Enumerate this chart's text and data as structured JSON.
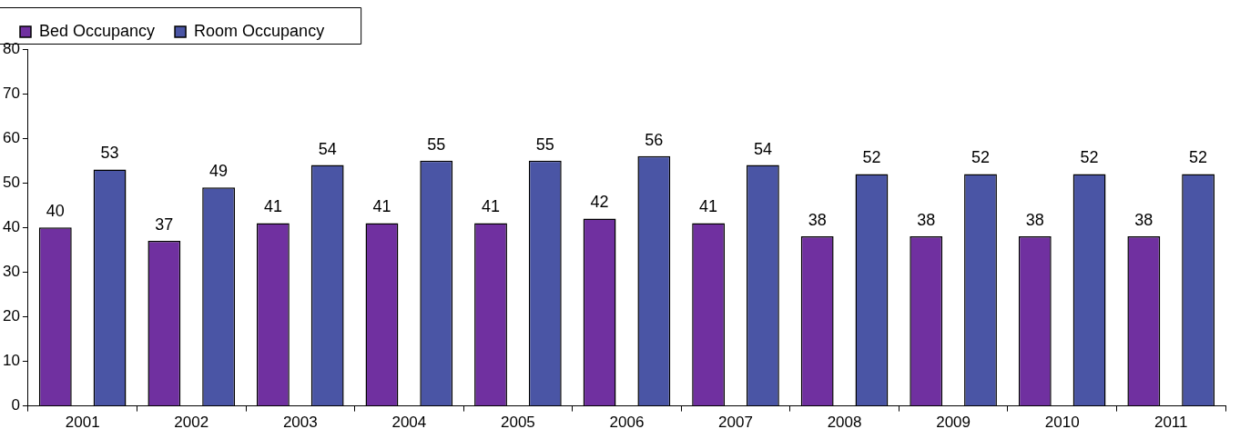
{
  "chart_data": {
    "type": "bar",
    "categories": [
      "2001",
      "2002",
      "2003",
      "2004",
      "2005",
      "2006",
      "2007",
      "2008",
      "2009",
      "2010",
      "2011"
    ],
    "series": [
      {
        "name": "Bed Occupancy",
        "color": "#7030a0",
        "values": [
          40,
          37,
          41,
          41,
          41,
          42,
          41,
          38,
          38,
          38,
          38
        ]
      },
      {
        "name": "Room Occupancy",
        "color": "#4a55a5",
        "values": [
          53,
          49,
          54,
          55,
          55,
          56,
          54,
          52,
          52,
          52,
          52
        ]
      }
    ],
    "ylim": [
      0,
      80
    ],
    "yticks": [
      0,
      10,
      20,
      30,
      40,
      50,
      60,
      70,
      80
    ],
    "grid": false,
    "legend": "top left",
    "data_labels": true
  }
}
